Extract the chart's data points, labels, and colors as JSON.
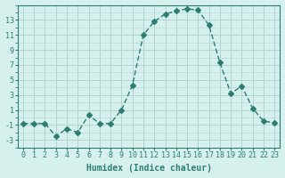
{
  "x": [
    0,
    1,
    2,
    3,
    4,
    5,
    6,
    7,
    8,
    9,
    10,
    11,
    12,
    13,
    14,
    15,
    16,
    17,
    18,
    19,
    20,
    21,
    22,
    23
  ],
  "y": [
    -0.8,
    -0.8,
    -0.8,
    -2.5,
    -1.5,
    -2.0,
    0.3,
    -0.8,
    -0.8,
    1.0,
    4.3,
    11.0,
    12.8,
    13.8,
    14.2,
    14.5,
    14.3,
    12.3,
    7.3,
    3.2,
    4.2,
    1.2,
    -0.5,
    -0.7
  ],
  "line_color": "#2e7d72",
  "marker": "D",
  "marker_size": 3,
  "bg_color": "#d6f0ee",
  "grid_color": "#b0d4d0",
  "xlabel": "Humidex (Indice chaleur)",
  "xlim": [
    -0.5,
    23.5
  ],
  "ylim": [
    -4,
    15
  ],
  "yticks": [
    -3,
    -1,
    1,
    3,
    5,
    7,
    9,
    11,
    13
  ],
  "xticks": [
    0,
    1,
    2,
    3,
    4,
    5,
    6,
    7,
    8,
    9,
    10,
    11,
    12,
    13,
    14,
    15,
    16,
    17,
    18,
    19,
    20,
    21,
    22,
    23
  ],
  "title_color": "#2e7d72",
  "tick_color": "#2e7d72",
  "label_color": "#2e7d72",
  "spine_color": "#2e7d72",
  "axis_color": "#2e7d72"
}
